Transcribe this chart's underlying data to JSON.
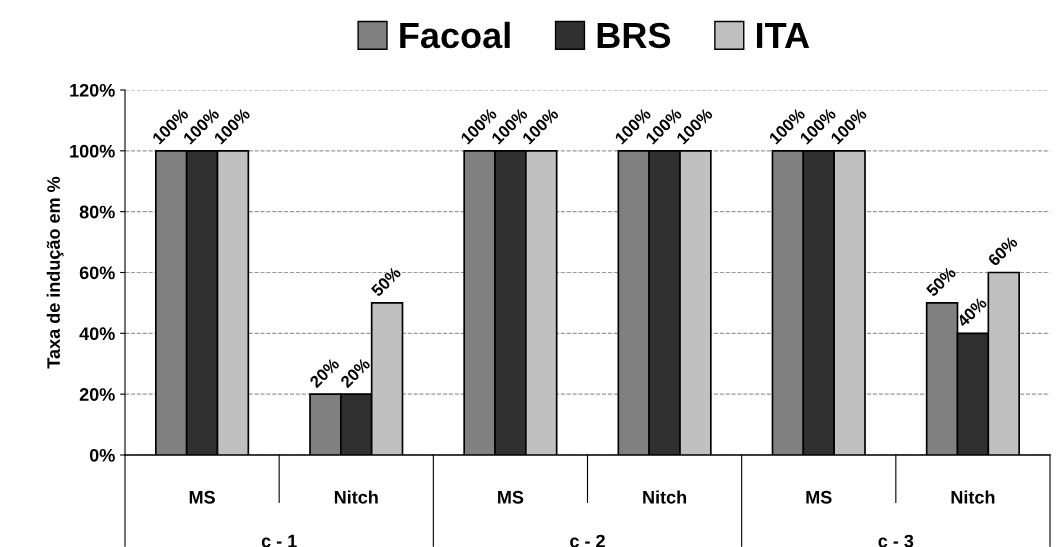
{
  "chart_data": {
    "type": "bar",
    "ylabel": "Taxa de indução em %",
    "categories": [
      "MS",
      "Nitch",
      "MS",
      "Nitch",
      "MS",
      "Nitch"
    ],
    "series": [
      {
        "name": "Facoal",
        "color": "#808080",
        "values": [
          100,
          20,
          100,
          100,
          100,
          50
        ]
      },
      {
        "name": "BRS",
        "color": "#303030",
        "values": [
          100,
          20,
          100,
          100,
          100,
          40
        ]
      },
      {
        "name": "ITA",
        "color": "#c0c0c0",
        "values": [
          100,
          50,
          100,
          100,
          100,
          60
        ]
      }
    ],
    "annotations": [
      "c - 1",
      "c - 2",
      "c - 3"
    ],
    "ylim": [
      0,
      120
    ],
    "yticks": [
      {
        "value": 0,
        "label": "0%"
      },
      {
        "value": 20,
        "label": "20%"
      },
      {
        "value": 40,
        "label": "40%"
      },
      {
        "value": 60,
        "label": "60%"
      },
      {
        "value": 80,
        "label": "80%"
      },
      {
        "value": 100,
        "label": "100%"
      },
      {
        "value": 120,
        "label": "120%"
      }
    ],
    "value_labels": [
      [
        "100%",
        "20%",
        "100%",
        "100%",
        "100%",
        "50%"
      ],
      [
        "100%",
        "20%",
        "100%",
        "100%",
        "100%",
        "40%"
      ],
      [
        "100%",
        "50%",
        "100%",
        "100%",
        "100%",
        "60%"
      ]
    ],
    "grid": "y",
    "legend": "top"
  }
}
